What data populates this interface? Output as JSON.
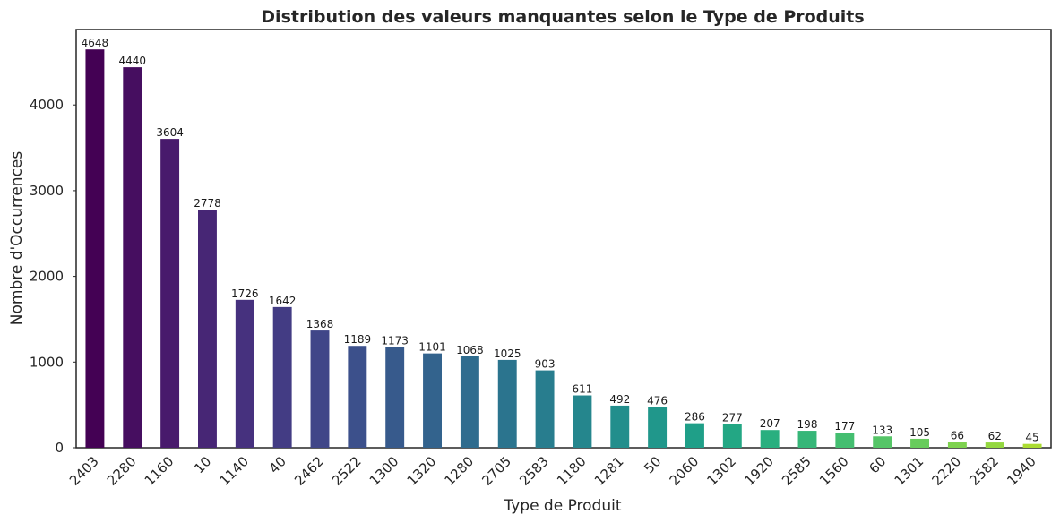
{
  "chart_data": {
    "type": "bar",
    "title": "Distribution des valeurs manquantes selon le Type de Produits",
    "xlabel": "Type de Produit",
    "ylabel": "Nombre d'Occurrences",
    "categories": [
      "2403",
      "2280",
      "1160",
      "10",
      "1140",
      "40",
      "2462",
      "2522",
      "1300",
      "1320",
      "1280",
      "2705",
      "2583",
      "1180",
      "1281",
      "50",
      "2060",
      "1302",
      "1920",
      "2585",
      "1560",
      "60",
      "1301",
      "2220",
      "2582",
      "1940"
    ],
    "values": [
      4648,
      4440,
      3604,
      2778,
      1726,
      1642,
      1368,
      1189,
      1173,
      1101,
      1068,
      1025,
      903,
      611,
      492,
      476,
      286,
      277,
      207,
      198,
      177,
      133,
      105,
      66,
      62,
      45
    ],
    "ylim": [
      0,
      4880
    ],
    "yticks": [
      0,
      1000,
      2000,
      3000,
      4000
    ],
    "grid": false,
    "legend": "none",
    "colormap": "viridis",
    "bar_colors": [
      "#440154",
      "#48186a",
      "#472d7b",
      "#424086",
      "#3b528b",
      "#33638d",
      "#2c728e",
      "#26828e",
      "#21918c",
      "#1fa088",
      "#28ae80",
      "#3fbc73",
      "#5ec962",
      "#84d44b",
      "#addc30",
      "#d8e219"
    ]
  }
}
